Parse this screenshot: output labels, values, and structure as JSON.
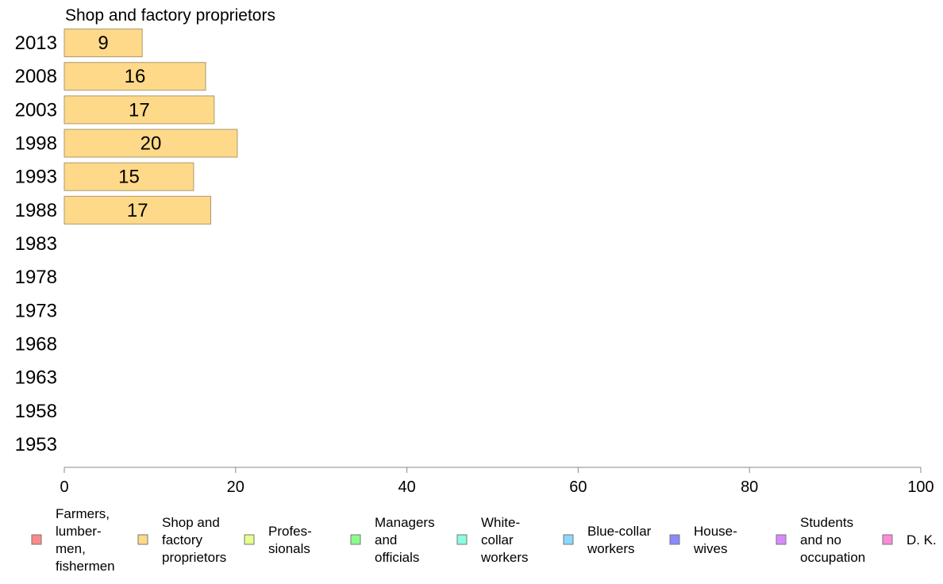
{
  "chart_data": {
    "type": "bar",
    "orientation": "horizontal",
    "title": "Shop and factory proprietors",
    "categories": [
      "2013",
      "2008",
      "2003",
      "1998",
      "1993",
      "1988",
      "1983",
      "1978",
      "1973",
      "1968",
      "1963",
      "1958",
      "1953"
    ],
    "values": [
      9.1,
      16.5,
      17.5,
      20.2,
      15.1,
      17.1,
      null,
      null,
      null,
      null,
      null,
      null,
      null
    ],
    "value_labels": [
      "9",
      "16",
      "17",
      "20",
      "15",
      "17",
      "",
      "",
      "",
      "",
      "",
      "",
      ""
    ],
    "xlim": [
      0,
      100
    ],
    "x_ticks": [
      "0",
      "20",
      "40",
      "60",
      "80",
      "100"
    ],
    "grid": false,
    "bar_color": "#ffd98a",
    "bar_edge_color": "#a89a6e",
    "axis_color": "#888888",
    "legend_placement": "bottom",
    "legend": [
      {
        "lines": [
          "Farmers,",
          "lumber-",
          "men,",
          "fishermen"
        ],
        "color": "#ff8a8a"
      },
      {
        "lines": [
          "Shop and",
          "factory",
          "proprietors"
        ],
        "color": "#ffd98a"
      },
      {
        "lines": [
          "Profes-",
          "sionals"
        ],
        "color": "#e6ff8a"
      },
      {
        "lines": [
          "Managers",
          "and",
          "officials"
        ],
        "color": "#8aff8a"
      },
      {
        "lines": [
          "White-",
          "collar",
          "workers"
        ],
        "color": "#8affe0"
      },
      {
        "lines": [
          "Blue-collar",
          "workers"
        ],
        "color": "#8ad8ff"
      },
      {
        "lines": [
          "House-",
          "wives"
        ],
        "color": "#8a8aff"
      },
      {
        "lines": [
          "Students",
          "and no",
          "occupation"
        ],
        "color": "#d98aff"
      },
      {
        "lines": [
          "D. K."
        ],
        "color": "#ff8ad9"
      }
    ]
  }
}
